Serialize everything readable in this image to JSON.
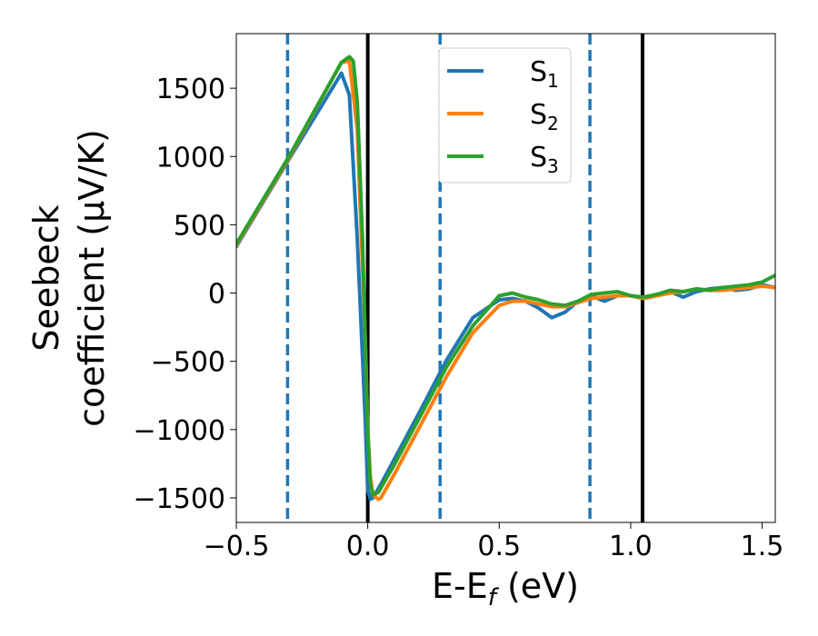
{
  "chart_data": {
    "type": "line",
    "xlabel": "E-E",
    "xlabel_sub": "f",
    "xlabel_unit": " (eV)",
    "ylabel_line1": "Seebeck",
    "ylabel_line2": "coefficient  (μV/K)",
    "xlim": [
      -0.5,
      1.55
    ],
    "ylim": [
      -1680,
      1900
    ],
    "xticks": [
      -0.5,
      0.0,
      0.5,
      1.0,
      1.5
    ],
    "xtick_labels": [
      "−0.5",
      "0.0",
      "0.5",
      "1.0",
      "1.5"
    ],
    "yticks": [
      -1500,
      -1000,
      -500,
      0,
      500,
      1000,
      1500
    ],
    "ytick_labels": [
      "−1500",
      "−1000",
      "−500",
      "0",
      "500",
      "1000",
      "1500"
    ],
    "grid": false,
    "legend_position": "top-center",
    "series": [
      {
        "name": "S",
        "sub": "1",
        "color": "#1f77b4",
        "x": [
          -0.5,
          -0.3,
          -0.1,
          -0.07,
          -0.04,
          -0.01,
          0.0,
          0.01,
          0.02,
          0.05,
          0.1,
          0.2,
          0.3,
          0.4,
          0.5,
          0.55,
          0.6,
          0.65,
          0.7,
          0.75,
          0.8,
          0.85,
          0.9,
          0.95,
          1.0,
          1.05,
          1.1,
          1.15,
          1.2,
          1.25,
          1.3,
          1.35,
          1.4,
          1.45,
          1.5,
          1.55
        ],
        "y": [
          340,
          980,
          1610,
          1450,
          400,
          -900,
          -1440,
          -1510,
          -1500,
          -1400,
          -1220,
          -860,
          -490,
          -180,
          -50,
          -40,
          -60,
          -110,
          -180,
          -140,
          -60,
          -20,
          -60,
          -20,
          -20,
          -40,
          -10,
          10,
          -30,
          10,
          30,
          40,
          20,
          30,
          60,
          40
        ]
      },
      {
        "name": "S",
        "sub": "2",
        "color": "#ff7f0e",
        "x": [
          -0.5,
          -0.3,
          -0.1,
          -0.07,
          -0.04,
          -0.01,
          0.0,
          0.01,
          0.02,
          0.04,
          0.05,
          0.1,
          0.2,
          0.3,
          0.4,
          0.5,
          0.55,
          0.6,
          0.65,
          0.7,
          0.75,
          0.8,
          0.85,
          0.9,
          0.95,
          1.0,
          1.05,
          1.1,
          1.15,
          1.2,
          1.25,
          1.3,
          1.35,
          1.4,
          1.45,
          1.5,
          1.55
        ],
        "y": [
          350,
          990,
          1690,
          1700,
          1200,
          -300,
          -1000,
          -1350,
          -1480,
          -1510,
          -1500,
          -1330,
          -970,
          -610,
          -290,
          -90,
          -60,
          -60,
          -80,
          -100,
          -100,
          -70,
          -40,
          -30,
          -20,
          -20,
          -40,
          -20,
          0,
          10,
          30,
          20,
          20,
          30,
          40,
          50,
          40
        ]
      },
      {
        "name": "S",
        "sub": "3",
        "color": "#2ca02c",
        "x": [
          -0.5,
          -0.3,
          -0.1,
          -0.07,
          -0.055,
          -0.04,
          -0.02,
          0.0,
          0.01,
          0.02,
          0.04,
          0.1,
          0.2,
          0.3,
          0.4,
          0.5,
          0.55,
          0.6,
          0.65,
          0.7,
          0.75,
          0.8,
          0.85,
          0.9,
          0.95,
          1.0,
          1.05,
          1.1,
          1.15,
          1.2,
          1.25,
          1.3,
          1.35,
          1.4,
          1.45,
          1.5,
          1.55
        ],
        "y": [
          360,
          1000,
          1690,
          1730,
          1700,
          1400,
          400,
          -1000,
          -1400,
          -1480,
          -1460,
          -1260,
          -900,
          -540,
          -240,
          -20,
          0,
          -30,
          -50,
          -80,
          -90,
          -60,
          -10,
          0,
          10,
          -20,
          -30,
          -10,
          20,
          10,
          30,
          20,
          40,
          50,
          60,
          80,
          130
        ]
      }
    ],
    "vlines": [
      {
        "x": -0.305,
        "style": "dashed",
        "color": "#1f77b4"
      },
      {
        "x": 0.0,
        "style": "solid",
        "color": "#000000"
      },
      {
        "x": 0.275,
        "style": "dashed",
        "color": "#1f77b4"
      },
      {
        "x": 0.845,
        "style": "dashed",
        "color": "#1f77b4"
      },
      {
        "x": 1.045,
        "style": "solid",
        "color": "#000000"
      }
    ]
  }
}
